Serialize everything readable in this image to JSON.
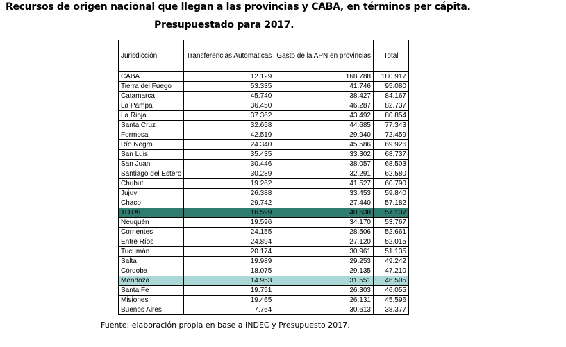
{
  "title": "Recursos de origen nacional que llegan a las provincias y CABA, en términos per cápita.",
  "subtitle": "Presupuestado para 2017.",
  "table": {
    "headers": [
      "Jurisdicción",
      "Transferencias Automáticas",
      "Gasto de la APN en provincias",
      "Total"
    ],
    "rows": [
      {
        "name": "CABA",
        "transferencias": "12.129",
        "gasto": "168.788",
        "total": "180.917",
        "style": ""
      },
      {
        "name": "Tierra del Fuego",
        "transferencias": "53.335",
        "gasto": "41.746",
        "total": "95.080",
        "style": ""
      },
      {
        "name": "Catamarca",
        "transferencias": "45.740",
        "gasto": "38.427",
        "total": "84.167",
        "style": ""
      },
      {
        "name": "La Pampa",
        "transferencias": "36.450",
        "gasto": "46.287",
        "total": "82.737",
        "style": ""
      },
      {
        "name": "La Rioja",
        "transferencias": "37.362",
        "gasto": "43.492",
        "total": "80.854",
        "style": ""
      },
      {
        "name": "Santa Cruz",
        "transferencias": "32.658",
        "gasto": "44.685",
        "total": "77.343",
        "style": ""
      },
      {
        "name": "Formosa",
        "transferencias": "42.519",
        "gasto": "29.940",
        "total": "72.459",
        "style": ""
      },
      {
        "name": "Río Negro",
        "transferencias": "24.340",
        "gasto": "45.586",
        "total": "69.926",
        "style": ""
      },
      {
        "name": "San Luis",
        "transferencias": "35.435",
        "gasto": "33.302",
        "total": "68.737",
        "style": ""
      },
      {
        "name": "San Juan",
        "transferencias": "30.446",
        "gasto": "38.057",
        "total": "68.503",
        "style": ""
      },
      {
        "name": "Santiago del Estero",
        "transferencias": "30.289",
        "gasto": "32.291",
        "total": "62.580",
        "style": ""
      },
      {
        "name": "Chubut",
        "transferencias": "19.262",
        "gasto": "41.527",
        "total": "60.790",
        "style": ""
      },
      {
        "name": "Jujuy",
        "transferencias": "26.388",
        "gasto": "33.453",
        "total": "59.840",
        "style": ""
      },
      {
        "name": "Chaco",
        "transferencias": "29.742",
        "gasto": "27.440",
        "total": "57.182",
        "style": ""
      },
      {
        "name": "TOTAL",
        "transferencias": "16.599",
        "gasto": "40.538",
        "total": "57.137",
        "style": "total"
      },
      {
        "name": "Neuquén",
        "transferencias": "19.596",
        "gasto": "34.170",
        "total": "53.767",
        "style": ""
      },
      {
        "name": "Corrientes",
        "transferencias": "24.155",
        "gasto": "28.506",
        "total": "52.661",
        "style": ""
      },
      {
        "name": "Entre Ríos",
        "transferencias": "24.894",
        "gasto": "27.120",
        "total": "52.015",
        "style": ""
      },
      {
        "name": "Tucumán",
        "transferencias": "20.174",
        "gasto": "30.961",
        "total": "51.135",
        "style": ""
      },
      {
        "name": "Salta",
        "transferencias": "19.989",
        "gasto": "29.253",
        "total": "49.242",
        "style": ""
      },
      {
        "name": "Córdoba",
        "transferencias": "18.075",
        "gasto": "29.135",
        "total": "47.210",
        "style": ""
      },
      {
        "name": "Mendoza",
        "transferencias": "14.953",
        "gasto": "31.551",
        "total": "46.505",
        "style": "hl"
      },
      {
        "name": "Santa Fe",
        "transferencias": "19.751",
        "gasto": "26.303",
        "total": "46.055",
        "style": ""
      },
      {
        "name": "Misiones",
        "transferencias": "19.465",
        "gasto": "26.131",
        "total": "45.596",
        "style": ""
      },
      {
        "name": "Buenos Aires",
        "transferencias": "7.764",
        "gasto": "30.613",
        "total": "38.377",
        "style": ""
      }
    ]
  },
  "colors": {
    "total_row": "#2e7d70",
    "highlight_row": "#a9d8d6"
  },
  "source": "Fuente: elaboración propia en base a INDEC y Presupuesto 2017."
}
